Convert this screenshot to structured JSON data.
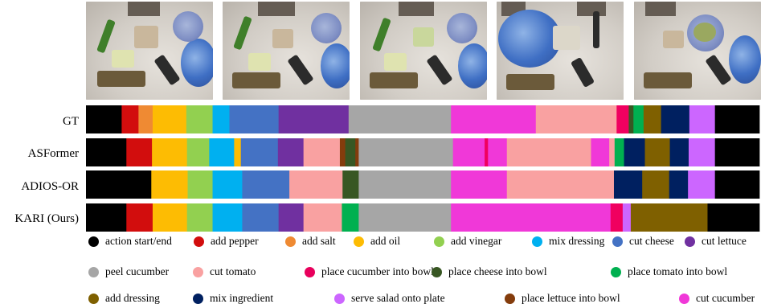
{
  "frames": [
    {
      "name": "frame-1"
    },
    {
      "name": "frame-2"
    },
    {
      "name": "frame-3"
    },
    {
      "name": "frame-4"
    },
    {
      "name": "frame-5"
    }
  ],
  "rows": [
    {
      "label": "GT",
      "segments": [
        {
          "a": 0,
          "b": 5.3,
          "c": "action"
        },
        {
          "a": 5.3,
          "b": 7.8,
          "c": "pepper"
        },
        {
          "a": 7.8,
          "b": 9.9,
          "c": "salt"
        },
        {
          "a": 9.9,
          "b": 14.9,
          "c": "oil"
        },
        {
          "a": 14.9,
          "b": 18.8,
          "c": "vinegar"
        },
        {
          "a": 18.8,
          "b": 21.3,
          "c": "mix"
        },
        {
          "a": 21.3,
          "b": 28.6,
          "c": "cheese"
        },
        {
          "a": 28.6,
          "b": 39.0,
          "c": "lettuce"
        },
        {
          "a": 39.0,
          "b": 54.2,
          "c": "peel"
        },
        {
          "a": 54.2,
          "b": 66.8,
          "c": "cutcucumber"
        },
        {
          "a": 66.8,
          "b": 78.8,
          "c": "tomato"
        },
        {
          "a": 78.8,
          "b": 80.6,
          "c": "pepperpink"
        },
        {
          "a": 80.6,
          "b": 81.3,
          "c": "placecheese"
        },
        {
          "a": 81.3,
          "b": 82.8,
          "c": "placetomato"
        },
        {
          "a": 82.8,
          "b": 85.4,
          "c": "dressing"
        },
        {
          "a": 85.4,
          "b": 89.6,
          "c": "mixing"
        },
        {
          "a": 89.6,
          "b": 93.4,
          "c": "serve"
        },
        {
          "a": 93.4,
          "b": 100,
          "c": "action"
        }
      ]
    },
    {
      "label": "ASFormer",
      "segments": [
        {
          "a": 0,
          "b": 6.0,
          "c": "action"
        },
        {
          "a": 6.0,
          "b": 9.8,
          "c": "pepper"
        },
        {
          "a": 9.8,
          "b": 15.0,
          "c": "oil"
        },
        {
          "a": 15.0,
          "b": 18.3,
          "c": "vinegar"
        },
        {
          "a": 18.3,
          "b": 22.0,
          "c": "mix"
        },
        {
          "a": 22.0,
          "b": 23.0,
          "c": "oil"
        },
        {
          "a": 23.0,
          "b": 28.5,
          "c": "cheese"
        },
        {
          "a": 28.5,
          "b": 32.3,
          "c": "lettuce"
        },
        {
          "a": 32.3,
          "b": 37.7,
          "c": "tomato"
        },
        {
          "a": 37.7,
          "b": 38.5,
          "c": "placelettuce"
        },
        {
          "a": 38.5,
          "b": 40.0,
          "c": "placecheese"
        },
        {
          "a": 40.0,
          "b": 40.5,
          "c": "placelettuce"
        },
        {
          "a": 40.5,
          "b": 54.5,
          "c": "peel"
        },
        {
          "a": 54.5,
          "b": 59.2,
          "c": "cutcucumber"
        },
        {
          "a": 59.2,
          "b": 59.7,
          "c": "pepperpink"
        },
        {
          "a": 59.7,
          "b": 62.5,
          "c": "cutcucumber"
        },
        {
          "a": 62.5,
          "b": 75.0,
          "c": "tomato"
        },
        {
          "a": 75.0,
          "b": 77.7,
          "c": "cutcucumber"
        },
        {
          "a": 77.7,
          "b": 78.5,
          "c": "tomato"
        },
        {
          "a": 78.5,
          "b": 79.9,
          "c": "placetomato"
        },
        {
          "a": 79.9,
          "b": 83.0,
          "c": "mixing"
        },
        {
          "a": 83.0,
          "b": 86.7,
          "c": "dressing"
        },
        {
          "a": 86.7,
          "b": 89.5,
          "c": "mixing"
        },
        {
          "a": 89.5,
          "b": 93.4,
          "c": "serve"
        },
        {
          "a": 93.4,
          "b": 100,
          "c": "action"
        }
      ]
    },
    {
      "label": "ADIOS-OR",
      "segments": [
        {
          "a": 0,
          "b": 9.7,
          "c": "action"
        },
        {
          "a": 9.7,
          "b": 15.1,
          "c": "oil"
        },
        {
          "a": 15.1,
          "b": 18.8,
          "c": "vinegar"
        },
        {
          "a": 18.8,
          "b": 23.2,
          "c": "mix"
        },
        {
          "a": 23.2,
          "b": 30.2,
          "c": "cheese"
        },
        {
          "a": 30.2,
          "b": 38.1,
          "c": "tomato"
        },
        {
          "a": 38.1,
          "b": 40.5,
          "c": "placecheese"
        },
        {
          "a": 40.5,
          "b": 54.2,
          "c": "peel"
        },
        {
          "a": 54.2,
          "b": 62.5,
          "c": "cutcucumber"
        },
        {
          "a": 62.5,
          "b": 78.4,
          "c": "tomato"
        },
        {
          "a": 78.4,
          "b": 82.6,
          "c": "mixing"
        },
        {
          "a": 82.6,
          "b": 86.6,
          "c": "dressing"
        },
        {
          "a": 86.6,
          "b": 89.4,
          "c": "mixing"
        },
        {
          "a": 89.4,
          "b": 93.4,
          "c": "serve"
        },
        {
          "a": 93.4,
          "b": 100,
          "c": "action"
        }
      ]
    },
    {
      "label": "KARI (Ours)",
      "segments": [
        {
          "a": 0,
          "b": 6.0,
          "c": "action"
        },
        {
          "a": 6.0,
          "b": 9.9,
          "c": "pepper"
        },
        {
          "a": 9.9,
          "b": 15.0,
          "c": "oil"
        },
        {
          "a": 15.0,
          "b": 18.8,
          "c": "vinegar"
        },
        {
          "a": 18.8,
          "b": 23.2,
          "c": "mix"
        },
        {
          "a": 23.2,
          "b": 28.6,
          "c": "cheese"
        },
        {
          "a": 28.6,
          "b": 32.3,
          "c": "lettuce"
        },
        {
          "a": 32.3,
          "b": 38.0,
          "c": "tomato"
        },
        {
          "a": 38.0,
          "b": 40.5,
          "c": "placetomato"
        },
        {
          "a": 40.5,
          "b": 54.2,
          "c": "peel"
        },
        {
          "a": 54.2,
          "b": 77.9,
          "c": "cutcucumber"
        },
        {
          "a": 77.9,
          "b": 79.7,
          "c": "pepperpink"
        },
        {
          "a": 79.7,
          "b": 80.9,
          "c": "serve"
        },
        {
          "a": 80.9,
          "b": 92.3,
          "c": "dressing"
        },
        {
          "a": 92.3,
          "b": 100,
          "c": "action"
        }
      ]
    }
  ],
  "colors": {
    "action": "#000000",
    "pepper": "#d20d0d",
    "salt": "#ef8a33",
    "oil": "#fdbc03",
    "vinegar": "#92d050",
    "mix": "#00b0f0",
    "cheese": "#4472c4",
    "lettuce": "#7030a0",
    "peel": "#a6a6a6",
    "tomato": "#f9a1a1",
    "cucumberbowl": "#e8005c",
    "placecheese": "#385723",
    "placetomato": "#00b050",
    "dressing": "#7f6000",
    "mixing": "#002060",
    "serve": "#cc66ff",
    "placelettuce": "#843c0c",
    "cutcucumber": "#f038d8",
    "pepperpink": "#f00060"
  },
  "legend": [
    {
      "label": "action start/end",
      "color": "#000000"
    },
    {
      "label": "add pepper",
      "color": "#d20d0d"
    },
    {
      "label": "add salt",
      "color": "#ef8a33"
    },
    {
      "label": "add oil",
      "color": "#fdbc03"
    },
    {
      "label": "add vinegar",
      "color": "#92d050"
    },
    {
      "label": "mix dressing",
      "color": "#00b0f0"
    },
    {
      "label": "cut cheese",
      "color": "#4472c4"
    },
    {
      "label": "cut lettuce",
      "color": "#7030a0"
    },
    {
      "label": "peel cucumber",
      "color": "#a6a6a6"
    },
    {
      "label": "cut tomato",
      "color": "#f9a1a1"
    },
    {
      "label": "place cucumber into bowl",
      "color": "#e8005c"
    },
    {
      "label": "place cheese into bowl",
      "color": "#385723"
    },
    {
      "label": "place tomato into bowl",
      "color": "#00b050"
    },
    {
      "label": "add dressing",
      "color": "#7f6000"
    },
    {
      "label": "mix ingredient",
      "color": "#002060"
    },
    {
      "label": "serve salad onto plate",
      "color": "#cc66ff"
    },
    {
      "label": "place lettuce into bowl",
      "color": "#843c0c"
    },
    {
      "label": "cut cucumber",
      "color": "#f038d8"
    }
  ]
}
